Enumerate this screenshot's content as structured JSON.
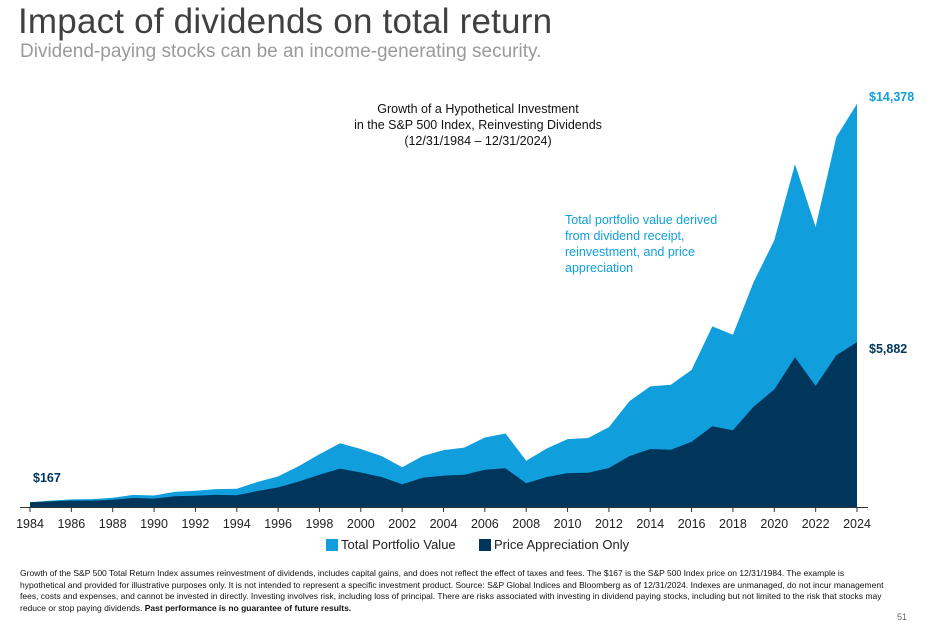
{
  "header": {
    "title": "Impact of dividends on total return",
    "subtitle": "Dividend-paying stocks can be an income-generating security."
  },
  "chart_data": {
    "type": "area",
    "title_lines": [
      "Growth of a Hypothetical Investment",
      "in the S&P 500 Index, Reinvesting Dividends",
      "(12/31/1984 – 12/31/2024)"
    ],
    "annotation_lines": [
      "Total portfolio value derived",
      "from dividend receipt,",
      "reinvestment, and price",
      "appreciation"
    ],
    "x_ticks": [
      1984,
      1986,
      1988,
      1990,
      1992,
      1994,
      1996,
      1998,
      2000,
      2002,
      2004,
      2006,
      2008,
      2010,
      2012,
      2014,
      2016,
      2018,
      2020,
      2022,
      2024
    ],
    "x": [
      1984,
      1985,
      1986,
      1987,
      1988,
      1989,
      1990,
      1991,
      1992,
      1993,
      1994,
      1995,
      1996,
      1997,
      1998,
      1999,
      2000,
      2001,
      2002,
      2003,
      2004,
      2005,
      2006,
      2007,
      2008,
      2009,
      2010,
      2011,
      2012,
      2013,
      2014,
      2015,
      2016,
      2017,
      2018,
      2019,
      2020,
      2021,
      2022,
      2023,
      2024
    ],
    "ylim": [
      0,
      14800
    ],
    "series": [
      {
        "name": "Total Portfolio Value",
        "color": "#109fdc",
        "values": [
          167,
          230,
          270,
          280,
          330,
          430,
          410,
          540,
          580,
          640,
          650,
          890,
          1090,
          1460,
          1880,
          2270,
          2070,
          1820,
          1420,
          1820,
          2030,
          2120,
          2480,
          2620,
          1650,
          2090,
          2420,
          2460,
          2850,
          3780,
          4300,
          4360,
          4890,
          6440,
          6140,
          8020,
          9510,
          12220,
          9990,
          13190,
          14378
        ]
      },
      {
        "name": "Price Appreciation Only",
        "color": "#00365b",
        "values": [
          167,
          200,
          230,
          230,
          260,
          320,
          300,
          380,
          400,
          430,
          420,
          570,
          700,
          910,
          1150,
          1370,
          1230,
          1070,
          810,
          1040,
          1120,
          1150,
          1330,
          1380,
          850,
          1070,
          1210,
          1220,
          1390,
          1820,
          2070,
          2040,
          2330,
          2880,
          2740,
          3580,
          4190,
          5340,
          4320,
          5410,
          5882
        ]
      }
    ],
    "value_labels": {
      "start": "$167",
      "end_total": "$14,378",
      "end_price": "$5,882"
    }
  },
  "legend": {
    "total": "Total Portfolio Value",
    "price": "Price Appreciation Only"
  },
  "footnote": {
    "text": "Growth of the S&P 500 Total Return Index assumes reinvestment of dividends, includes capital gains, and does not reflect the effect of taxes and fees. The $167 is the S&P 500 Index price on 12/31/1984. The example is hypothetical and provided for illustrative purposes only. It is not intended to represent a specific investment product. Source: S&P Global Indices and Bloomberg as of 12/31/2024. Indexes are unmanaged, do not incur management fees, costs and expenses, and cannot be invested in directly. Investing involves risk, including loss of principal. There are risks associated with investing in dividend paying stocks, including but not limited to the risk that stocks may reduce or stop paying dividends. ",
    "bold": "Past performance is no guarantee of future results."
  },
  "page_number": "51"
}
